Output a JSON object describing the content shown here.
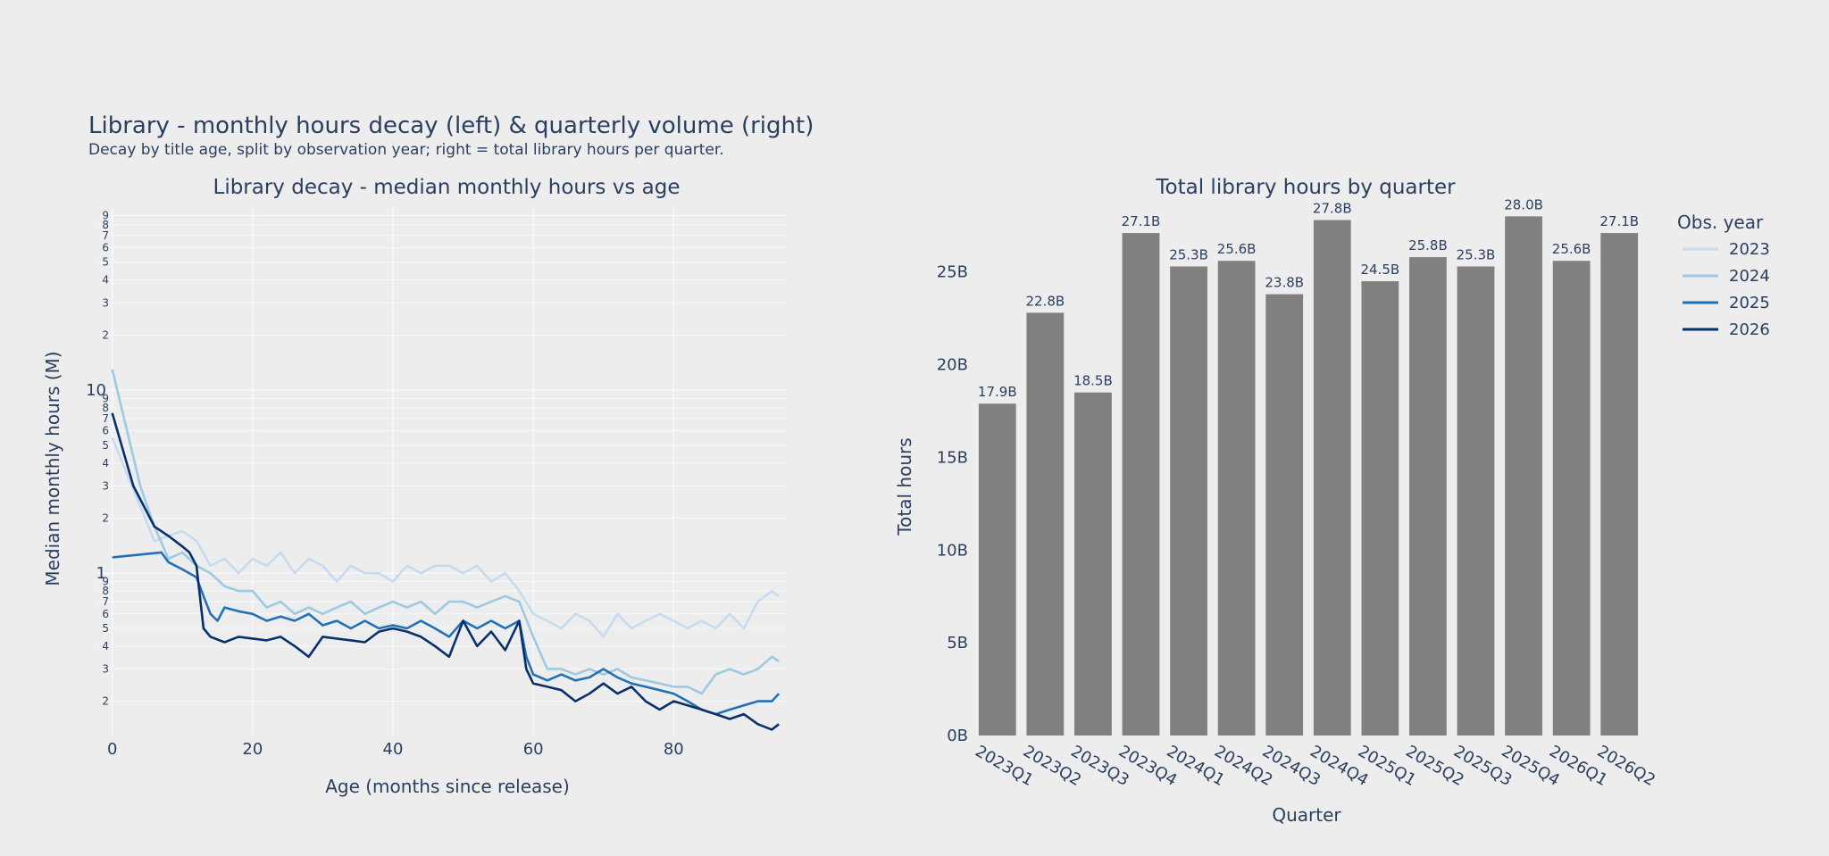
{
  "figure": {
    "title": "Library - monthly hours decay (left) & quarterly volume (right)",
    "subtitle": "Decay by title age, split by observation year; right = total library hours per quarter."
  },
  "colors": {
    "background": "#ededee",
    "grid": "#f8f8fa",
    "bar": "#808080",
    "text": "#2a3f5f"
  },
  "legend": {
    "title": "Obs. year",
    "placement": "right of bar chart",
    "items": [
      {
        "label": "2023",
        "color": "#c6dbef"
      },
      {
        "label": "2024",
        "color": "#9ecae1"
      },
      {
        "label": "2025",
        "color": "#2171b5"
      },
      {
        "label": "2026",
        "color": "#08306b"
      }
    ]
  },
  "chart_data": [
    {
      "type": "line",
      "title": "Library decay - median monthly hours vs age",
      "xlabel": "Age (months since release)",
      "ylabel": "Median monthly hours (M)",
      "yscale": "log",
      "xlim": [
        -2,
        96
      ],
      "ylim": [
        0.13,
        100
      ],
      "xticks": [
        0,
        20,
        40,
        60,
        80
      ],
      "ymajor_ticks": [
        1,
        10
      ],
      "yminor_labels": [
        "2",
        "3",
        "4",
        "5",
        "6",
        "7",
        "8",
        "9"
      ],
      "grid": true,
      "series": [
        {
          "name": "2023",
          "color": "#c6dbef",
          "points": [
            [
              0,
              5.5
            ],
            [
              6,
              1.5
            ],
            [
              8,
              1.6
            ],
            [
              10,
              1.7
            ],
            [
              12,
              1.5
            ],
            [
              14,
              1.1
            ],
            [
              16,
              1.2
            ],
            [
              18,
              1.0
            ],
            [
              20,
              1.2
            ],
            [
              22,
              1.1
            ],
            [
              24,
              1.3
            ],
            [
              26,
              1.0
            ],
            [
              28,
              1.2
            ],
            [
              30,
              1.1
            ],
            [
              32,
              0.9
            ],
            [
              34,
              1.1
            ],
            [
              36,
              1.0
            ],
            [
              38,
              1.0
            ],
            [
              40,
              0.9
            ],
            [
              42,
              1.1
            ],
            [
              44,
              1.0
            ],
            [
              46,
              1.1
            ],
            [
              48,
              1.1
            ],
            [
              50,
              1.0
            ],
            [
              52,
              1.1
            ],
            [
              54,
              0.9
            ],
            [
              56,
              1.0
            ],
            [
              58,
              0.8
            ],
            [
              60,
              0.6
            ],
            [
              62,
              0.55
            ],
            [
              64,
              0.5
            ],
            [
              66,
              0.6
            ],
            [
              68,
              0.55
            ],
            [
              70,
              0.45
            ],
            [
              72,
              0.6
            ],
            [
              74,
              0.5
            ],
            [
              76,
              0.55
            ],
            [
              78,
              0.6
            ],
            [
              80,
              0.55
            ],
            [
              82,
              0.5
            ],
            [
              84,
              0.55
            ],
            [
              86,
              0.5
            ],
            [
              88,
              0.6
            ],
            [
              90,
              0.5
            ],
            [
              92,
              0.7
            ],
            [
              94,
              0.8
            ],
            [
              95,
              0.75
            ]
          ]
        },
        {
          "name": "2024",
          "color": "#9ecae1",
          "points": [
            [
              0,
              13
            ],
            [
              4,
              3
            ],
            [
              6,
              1.8
            ],
            [
              8,
              1.2
            ],
            [
              10,
              1.3
            ],
            [
              12,
              1.1
            ],
            [
              14,
              1.0
            ],
            [
              16,
              0.85
            ],
            [
              18,
              0.8
            ],
            [
              20,
              0.8
            ],
            [
              22,
              0.65
            ],
            [
              24,
              0.7
            ],
            [
              26,
              0.6
            ],
            [
              28,
              0.65
            ],
            [
              30,
              0.6
            ],
            [
              32,
              0.65
            ],
            [
              34,
              0.7
            ],
            [
              36,
              0.6
            ],
            [
              38,
              0.65
            ],
            [
              40,
              0.7
            ],
            [
              42,
              0.65
            ],
            [
              44,
              0.7
            ],
            [
              46,
              0.6
            ],
            [
              48,
              0.7
            ],
            [
              50,
              0.7
            ],
            [
              52,
              0.65
            ],
            [
              54,
              0.7
            ],
            [
              56,
              0.75
            ],
            [
              58,
              0.7
            ],
            [
              60,
              0.45
            ],
            [
              62,
              0.3
            ],
            [
              64,
              0.3
            ],
            [
              66,
              0.28
            ],
            [
              68,
              0.3
            ],
            [
              70,
              0.28
            ],
            [
              72,
              0.3
            ],
            [
              74,
              0.27
            ],
            [
              76,
              0.26
            ],
            [
              78,
              0.25
            ],
            [
              80,
              0.24
            ],
            [
              82,
              0.24
            ],
            [
              84,
              0.22
            ],
            [
              86,
              0.28
            ],
            [
              88,
              0.3
            ],
            [
              90,
              0.28
            ],
            [
              92,
              0.3
            ],
            [
              94,
              0.35
            ],
            [
              95,
              0.33
            ]
          ]
        },
        {
          "name": "2025",
          "color": "#2171b5",
          "points": [
            [
              0,
              1.22
            ],
            [
              7,
              1.3
            ],
            [
              8,
              1.15
            ],
            [
              10,
              1.05
            ],
            [
              12,
              0.95
            ],
            [
              13,
              0.75
            ],
            [
              14,
              0.6
            ],
            [
              15,
              0.55
            ],
            [
              16,
              0.65
            ],
            [
              18,
              0.62
            ],
            [
              20,
              0.6
            ],
            [
              22,
              0.55
            ],
            [
              24,
              0.58
            ],
            [
              26,
              0.55
            ],
            [
              28,
              0.6
            ],
            [
              30,
              0.52
            ],
            [
              32,
              0.55
            ],
            [
              34,
              0.5
            ],
            [
              36,
              0.55
            ],
            [
              38,
              0.5
            ],
            [
              40,
              0.52
            ],
            [
              42,
              0.5
            ],
            [
              44,
              0.55
            ],
            [
              46,
              0.5
            ],
            [
              48,
              0.45
            ],
            [
              50,
              0.55
            ],
            [
              52,
              0.5
            ],
            [
              54,
              0.55
            ],
            [
              56,
              0.5
            ],
            [
              58,
              0.55
            ],
            [
              59,
              0.35
            ],
            [
              60,
              0.28
            ],
            [
              62,
              0.26
            ],
            [
              64,
              0.28
            ],
            [
              66,
              0.26
            ],
            [
              68,
              0.27
            ],
            [
              70,
              0.3
            ],
            [
              72,
              0.27
            ],
            [
              74,
              0.25
            ],
            [
              76,
              0.24
            ],
            [
              78,
              0.23
            ],
            [
              80,
              0.22
            ],
            [
              82,
              0.2
            ],
            [
              84,
              0.18
            ],
            [
              86,
              0.17
            ],
            [
              88,
              0.18
            ],
            [
              90,
              0.19
            ],
            [
              92,
              0.2
            ],
            [
              94,
              0.2
            ],
            [
              95,
              0.22
            ]
          ]
        },
        {
          "name": "2026",
          "color": "#08306b",
          "points": [
            [
              0,
              7.5
            ],
            [
              3,
              3
            ],
            [
              6,
              1.8
            ],
            [
              8,
              1.6
            ],
            [
              10,
              1.4
            ],
            [
              11,
              1.3
            ],
            [
              12,
              1.1
            ],
            [
              13,
              0.5
            ],
            [
              14,
              0.45
            ],
            [
              16,
              0.42
            ],
            [
              18,
              0.45
            ],
            [
              20,
              0.44
            ],
            [
              22,
              0.43
            ],
            [
              24,
              0.45
            ],
            [
              26,
              0.4
            ],
            [
              28,
              0.35
            ],
            [
              30,
              0.45
            ],
            [
              32,
              0.44
            ],
            [
              34,
              0.43
            ],
            [
              36,
              0.42
            ],
            [
              38,
              0.48
            ],
            [
              40,
              0.5
            ],
            [
              42,
              0.48
            ],
            [
              44,
              0.45
            ],
            [
              46,
              0.4
            ],
            [
              48,
              0.35
            ],
            [
              50,
              0.55
            ],
            [
              52,
              0.4
            ],
            [
              54,
              0.48
            ],
            [
              56,
              0.38
            ],
            [
              58,
              0.55
            ],
            [
              59,
              0.3
            ],
            [
              60,
              0.25
            ],
            [
              62,
              0.24
            ],
            [
              64,
              0.23
            ],
            [
              66,
              0.2
            ],
            [
              68,
              0.22
            ],
            [
              70,
              0.25
            ],
            [
              72,
              0.22
            ],
            [
              74,
              0.24
            ],
            [
              76,
              0.2
            ],
            [
              78,
              0.18
            ],
            [
              80,
              0.2
            ],
            [
              82,
              0.19
            ],
            [
              84,
              0.18
            ],
            [
              86,
              0.17
            ],
            [
              88,
              0.16
            ],
            [
              90,
              0.17
            ],
            [
              92,
              0.15
            ],
            [
              94,
              0.14
            ],
            [
              95,
              0.15
            ]
          ]
        }
      ]
    },
    {
      "type": "bar",
      "title": "Total library hours by quarter",
      "xlabel": "Quarter",
      "ylabel": "Total hours",
      "ylim": [
        0,
        28.5
      ],
      "yticks": [
        0,
        5,
        10,
        15,
        20,
        25
      ],
      "ytick_labels": [
        "0B",
        "5B",
        "10B",
        "15B",
        "20B",
        "25B"
      ],
      "categories": [
        "2023Q1",
        "2023Q2",
        "2023Q3",
        "2023Q4",
        "2024Q1",
        "2024Q2",
        "2024Q3",
        "2024Q4",
        "2025Q1",
        "2025Q2",
        "2025Q3",
        "2025Q4",
        "2026Q1",
        "2026Q2"
      ],
      "values": [
        17.9,
        22.8,
        18.5,
        27.1,
        25.3,
        25.6,
        23.8,
        27.8,
        24.5,
        25.8,
        25.3,
        28.0,
        25.6,
        27.1
      ],
      "labels": [
        "17.9B",
        "22.8B",
        "18.5B",
        "27.1B",
        "25.3B",
        "25.6B",
        "23.8B",
        "27.8B",
        "24.5B",
        "25.8B",
        "25.3B",
        "28.0B",
        "25.6B",
        "27.1B"
      ],
      "grid": false
    }
  ]
}
